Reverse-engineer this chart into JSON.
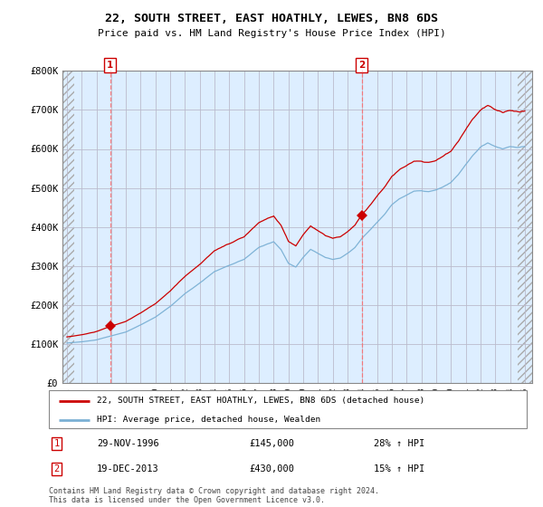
{
  "title": "22, SOUTH STREET, EAST HOATHLY, LEWES, BN8 6DS",
  "subtitle": "Price paid vs. HM Land Registry's House Price Index (HPI)",
  "legend_line1": "22, SOUTH STREET, EAST HOATHLY, LEWES, BN8 6DS (detached house)",
  "legend_line2": "HPI: Average price, detached house, Wealden",
  "footnote": "Contains HM Land Registry data © Crown copyright and database right 2024.\nThis data is licensed under the Open Government Licence v3.0.",
  "transaction1_date": "29-NOV-1996",
  "transaction1_price": "£145,000",
  "transaction1_hpi": "28% ↑ HPI",
  "transaction2_date": "19-DEC-2013",
  "transaction2_price": "£430,000",
  "transaction2_hpi": "15% ↑ HPI",
  "price_color": "#cc0000",
  "hpi_color": "#7ab0d4",
  "chart_bg_color": "#ddeeff",
  "ylim": [
    0,
    800000
  ],
  "yticks": [
    0,
    100000,
    200000,
    300000,
    400000,
    500000,
    600000,
    700000,
    800000
  ],
  "ytick_labels": [
    "£0",
    "£100K",
    "£200K",
    "£300K",
    "£400K",
    "£500K",
    "£600K",
    "£700K",
    "£800K"
  ],
  "transaction1_year": 1996.92,
  "transaction2_year": 2013.96,
  "transaction1_price_val": 145000,
  "transaction2_price_val": 430000,
  "xlim_left": 1993.7,
  "xlim_right": 2025.5,
  "hatch_right_start": 2024.5
}
